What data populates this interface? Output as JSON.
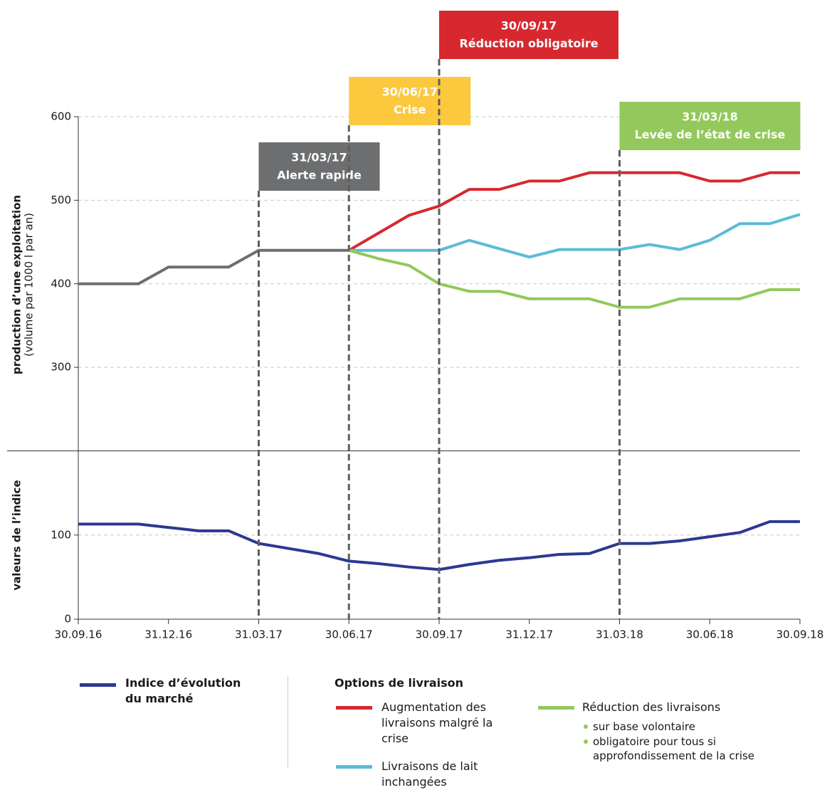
{
  "chart_data": {
    "type": "line",
    "categories": [
      "30.09.16",
      null,
      null,
      "31.12.16",
      null,
      null,
      "31.03.17",
      null,
      null,
      "30.06.17",
      null,
      null,
      "30.09.17",
      null,
      null,
      "31.12.17",
      null,
      null,
      "31.03.18",
      null,
      null,
      "30.06.18",
      null,
      null,
      "30.09.18"
    ],
    "ylabel": "production d’une exploitation",
    "ylabel_sub": "(volume par 1000 l par an)",
    "y2label": "valeurs de l’indice",
    "ylim": [
      200,
      600
    ],
    "yticks": [
      300,
      400,
      500,
      600
    ],
    "y2lim": [
      0,
      200
    ],
    "y2ticks": [
      0,
      100
    ],
    "grid": true,
    "legend_title": "Options de livraison",
    "series": [
      {
        "color": "#6d6e70",
        "values": [
          400,
          400,
          400,
          420,
          420,
          420,
          440,
          440,
          440,
          440,
          null,
          null,
          null,
          null,
          null,
          null,
          null,
          null,
          null,
          null,
          null,
          null,
          null,
          null,
          null
        ]
      },
      {
        "name": "Augmentation des livraisons malgré la crise",
        "color": "#d7282f",
        "values": [
          null,
          null,
          null,
          null,
          null,
          null,
          null,
          null,
          null,
          440,
          461,
          482,
          493,
          513,
          513,
          523,
          523,
          533,
          533,
          533,
          533,
          523,
          523,
          533,
          533
        ]
      },
      {
        "name": "Livraisons de lait inchangées",
        "color": "#5bbcd6",
        "values": [
          null,
          null,
          null,
          null,
          null,
          null,
          null,
          null,
          null,
          440,
          440,
          440,
          440,
          452,
          442,
          432,
          441,
          441,
          441,
          447,
          441,
          452,
          472,
          472,
          483
        ]
      },
      {
        "name": "Réduction des livraisons",
        "color": "#93c85c",
        "values": [
          null,
          null,
          null,
          null,
          null,
          null,
          null,
          null,
          null,
          440,
          430,
          422,
          400,
          391,
          391,
          382,
          382,
          382,
          372,
          372,
          382,
          382,
          382,
          393,
          393
        ],
        "legend_notes": [
          "sur base volontaire",
          "obligatoire pour tous si approfondissement de la crise"
        ]
      },
      {
        "name": "Indice d’évolution du marché",
        "color": "#2b3990",
        "axis": "y2",
        "values": [
          113,
          113,
          113,
          109,
          105,
          105,
          90,
          84,
          78,
          69,
          66,
          62,
          59,
          65,
          70,
          73,
          77,
          78,
          90,
          90,
          93,
          98,
          103,
          116,
          116
        ]
      }
    ],
    "events": [
      {
        "at": "31.03.17",
        "date": "31/03/17",
        "label": "Alerte rapide",
        "color": "#6d6e70"
      },
      {
        "at": "30.06.17",
        "date": "30/06/17",
        "label": "Crise",
        "color": "#fcc93e"
      },
      {
        "at": "30.09.17",
        "date": "30/09/17",
        "label": "Réduction obligatoire",
        "color": "#d7282f"
      },
      {
        "at": "31.03.18",
        "date": "31/03/18",
        "label": "Levée de l’état de crise",
        "color": "#93c85c"
      }
    ]
  }
}
